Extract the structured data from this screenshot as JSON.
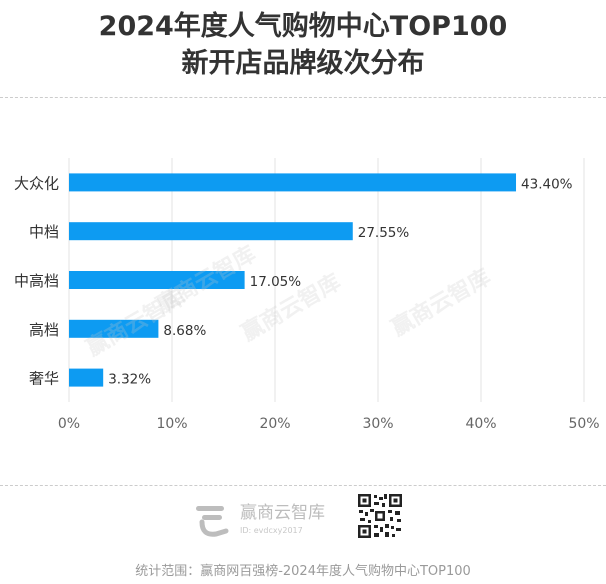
{
  "title_line1": "2024年度人气购物中心TOP100",
  "title_line2": "新开店品牌级次分布",
  "chart_data": {
    "type": "bar",
    "orientation": "horizontal",
    "categories": [
      "大众化",
      "中档",
      "中高档",
      "高档",
      "奢华"
    ],
    "values": [
      43.4,
      27.55,
      17.05,
      8.68,
      3.32
    ],
    "value_labels": [
      "43.40%",
      "27.55%",
      "17.05%",
      "8.68%",
      "3.32%"
    ],
    "x_ticks": [
      0,
      10,
      20,
      30,
      40,
      50
    ],
    "x_tick_labels": [
      "0%",
      "10%",
      "20%",
      "30%",
      "40%",
      "50%"
    ],
    "xlim": [
      0,
      50
    ],
    "grid": "vertical",
    "bar_color": "#0d9bf2"
  },
  "watermark": {
    "text": "赢商云智库"
  },
  "footer": {
    "logo_name": "赢商云智库",
    "logo_id": "ID: evdcxy2017",
    "source": "统计范围：赢商网百强榜-2024年度人气购物中心TOP100"
  },
  "colors": {
    "title": "#333333",
    "bar": "#0d9bf2",
    "grid": "#e3e3e3",
    "footer": "#9a9a9a"
  }
}
